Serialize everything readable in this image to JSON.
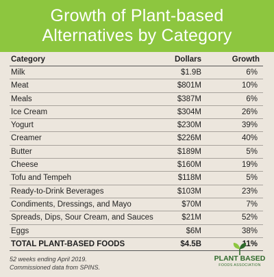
{
  "title_line1": "Growth of Plant-based",
  "title_line2": "Alternatives by Category",
  "footnote_line1": "52 weeks ending April 2019.",
  "footnote_line2": "Commissioned data from SPINS.",
  "logo": {
    "line1": "PLANT BASED",
    "line2": "FOODS ASSOCIATION",
    "icon": "sprout-leaf-icon"
  },
  "colors": {
    "header_bg": "#8dc63f",
    "page_bg": "#ece6dd",
    "logo": "#2e6a2b"
  },
  "chart_data": {
    "type": "table",
    "columns": [
      "Category",
      "Dollars",
      "Growth"
    ],
    "rows": [
      [
        "Milk",
        "$1.9B",
        "6%"
      ],
      [
        "Meat",
        "$801M",
        "10%"
      ],
      [
        "Meals",
        "$387M",
        "6%"
      ],
      [
        "Ice Cream",
        "$304M",
        "26%"
      ],
      [
        "Yogurt",
        "$230M",
        "39%"
      ],
      [
        "Creamer",
        "$226M",
        "40%"
      ],
      [
        "Butter",
        "$189M",
        "5%"
      ],
      [
        "Cheese",
        "$160M",
        "19%"
      ],
      [
        "Tofu and Tempeh",
        "$118M",
        "5%"
      ],
      [
        "Ready-to-Drink Beverages",
        "$103M",
        "23%"
      ],
      [
        "Condiments, Dressings, and Mayo",
        "$70M",
        "7%"
      ],
      [
        "Spreads, Dips, Sour Cream, and Sauces",
        "$21M",
        "52%"
      ],
      [
        "Eggs",
        "$6M",
        "38%"
      ]
    ],
    "total": [
      "TOTAL PLANT-BASED FOODS",
      "$4.5B",
      "11%"
    ]
  }
}
